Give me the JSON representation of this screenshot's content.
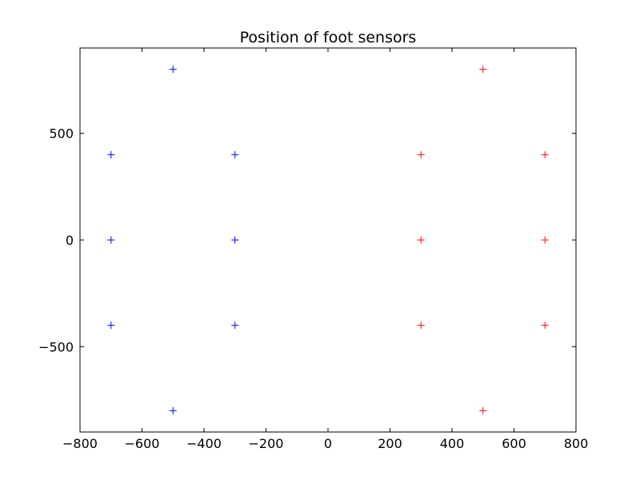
{
  "chart_data": {
    "type": "scatter",
    "title": "Position of foot sensors",
    "xlabel": "",
    "ylabel": "",
    "xlim": [
      -800,
      800
    ],
    "ylim": [
      -900,
      900
    ],
    "xticks": [
      -800,
      -600,
      -400,
      -200,
      0,
      200,
      400,
      600,
      800
    ],
    "yticks": [
      -500,
      0,
      500
    ],
    "xtick_labels": [
      "−800",
      "−600",
      "−400",
      "−200",
      "0",
      "200",
      "400",
      "600",
      "800"
    ],
    "ytick_labels": [
      "−500",
      "0",
      "500"
    ],
    "grid": false,
    "legend": false,
    "marker": "+",
    "series": [
      {
        "color": "#0000ff",
        "points": [
          {
            "x": -500,
            "y": 800
          },
          {
            "x": -700,
            "y": 400
          },
          {
            "x": -300,
            "y": 400
          },
          {
            "x": -700,
            "y": 0
          },
          {
            "x": -300,
            "y": 0
          },
          {
            "x": -700,
            "y": -400
          },
          {
            "x": -300,
            "y": -400
          },
          {
            "x": -500,
            "y": -800
          }
        ]
      },
      {
        "color": "#ff0000",
        "points": [
          {
            "x": 500,
            "y": 800
          },
          {
            "x": 300,
            "y": 400
          },
          {
            "x": 700,
            "y": 400
          },
          {
            "x": 300,
            "y": 0
          },
          {
            "x": 700,
            "y": 0
          },
          {
            "x": 300,
            "y": -400
          },
          {
            "x": 700,
            "y": -400
          },
          {
            "x": 500,
            "y": -800
          }
        ]
      }
    ]
  }
}
